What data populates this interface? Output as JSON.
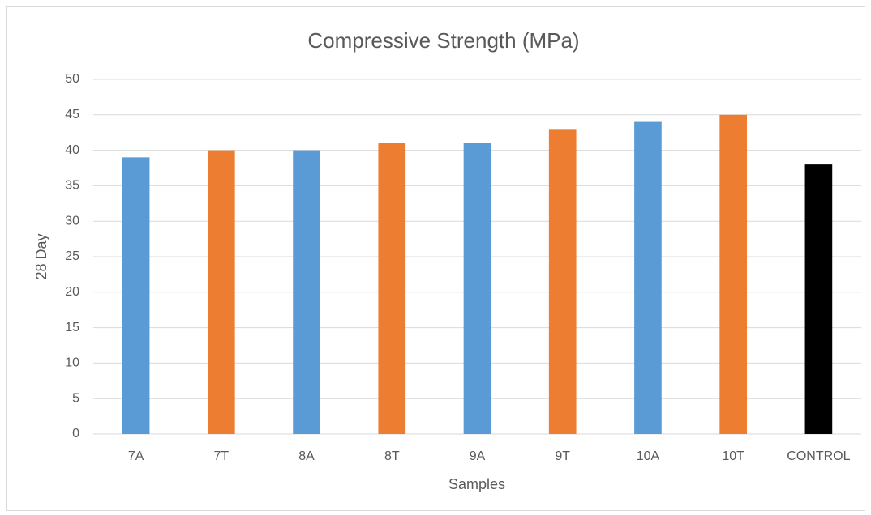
{
  "chart_data": {
    "type": "bar",
    "title": "Compressive Strength (MPa)",
    "x_label": "Samples",
    "y_label": "28 Day",
    "categories": [
      "7A",
      "7T",
      "8A",
      "8T",
      "9A",
      "9T",
      "10A",
      "10T",
      "CONTROL"
    ],
    "values": [
      39,
      40,
      40,
      41,
      41,
      43,
      44,
      45,
      38
    ],
    "colors": [
      "#5b9bd5",
      "#ed7d31",
      "#5b9bd5",
      "#ed7d31",
      "#5b9bd5",
      "#ed7d31",
      "#5b9bd5",
      "#ed7d31",
      "#000000"
    ],
    "ylim": [
      0,
      50
    ],
    "yticks": [
      0,
      5,
      10,
      15,
      20,
      25,
      30,
      35,
      40,
      45,
      50
    ],
    "grid": true
  }
}
